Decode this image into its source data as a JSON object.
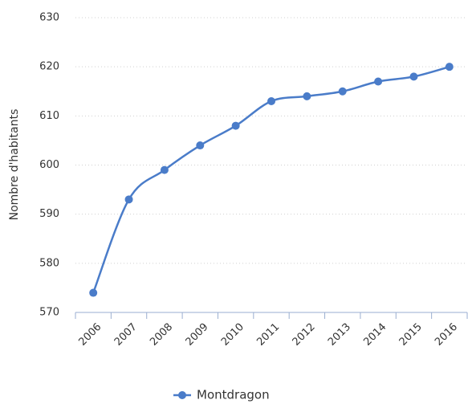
{
  "chart_data": {
    "type": "line",
    "y_label": "Nombre d'habitants",
    "categories": [
      "2006",
      "2007",
      "2008",
      "2009",
      "2010",
      "2011",
      "2012",
      "2013",
      "2014",
      "2015",
      "2016"
    ],
    "series": [
      {
        "name": "Montdragon",
        "color": "#4a7cc9",
        "values": [
          574,
          593,
          599,
          604,
          608,
          613,
          614,
          615,
          617,
          618,
          620
        ]
      }
    ],
    "ylim": [
      570,
      630
    ],
    "yticks": [
      570,
      580,
      590,
      600,
      610,
      620,
      630
    ],
    "grid": true,
    "legend": "bottom"
  }
}
